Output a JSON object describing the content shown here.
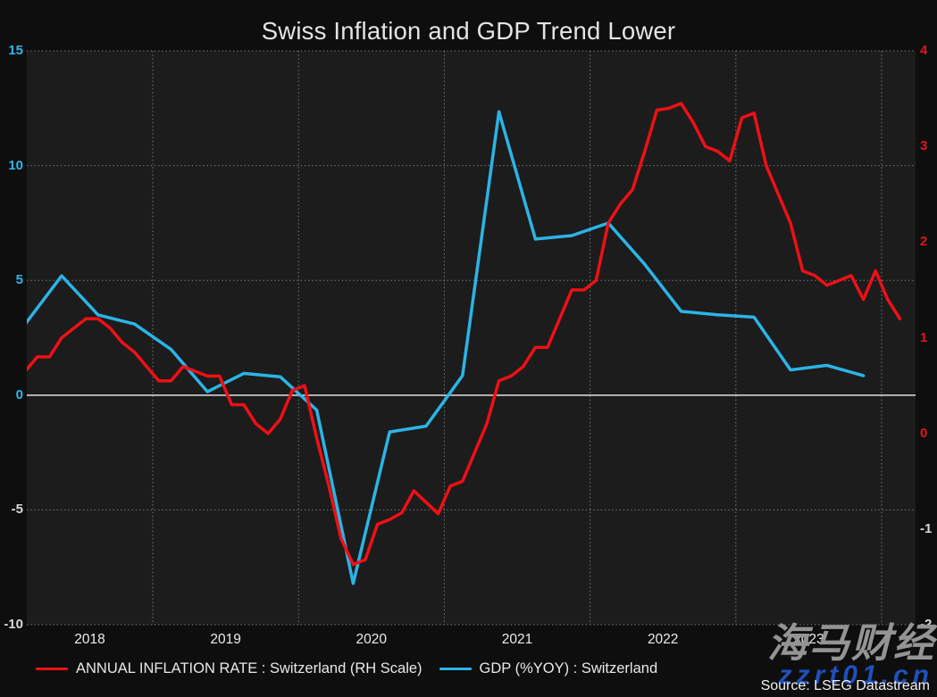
{
  "title": "Swiss Inflation and GDP Trend Lower",
  "source": "Source: LSEG Datastream",
  "watermark": {
    "line1": "海马财经",
    "line2": "zzrt01.cn"
  },
  "legend": [
    {
      "label": "ANNUAL INFLATION RATE : Switzerland (RH Scale)",
      "color": "#ee1016"
    },
    {
      "label": "GDP (%YOY) : Switzerland",
      "color": "#2cb4e6"
    }
  ],
  "colors": {
    "background": "#0e0e0e",
    "plot_background": "#1c1c1c",
    "grid_dotted": "#a8a8a8",
    "zero_line": "#d2d2d2",
    "left_tick_positive": "#2fb7e8",
    "right_tick_positive": "#e0151f",
    "tick_negative": "#d9d9d9",
    "x_tick": "#ececec",
    "title_text": "#e4e4e6"
  },
  "chart_data": {
    "type": "line",
    "title": "Swiss Inflation and GDP Trend Lower",
    "grid": "dotted",
    "zero_line": true,
    "legend_position": "bottom-left",
    "x_axis": {
      "tick_labels": [
        "2018",
        "2019",
        "2020",
        "2021",
        "2022",
        "2023"
      ],
      "gridline_years": [
        2019,
        2020,
        2021,
        2022,
        2023,
        2024
      ],
      "range_years": [
        2018.1,
        2024.25
      ]
    },
    "left_axis": {
      "label_for": "GDP (%YOY) : Switzerland",
      "ylim": [
        -10,
        15
      ],
      "ticks": [
        15,
        10,
        5,
        0,
        -5,
        -10
      ]
    },
    "right_axis": {
      "label_for": "ANNUAL INFLATION RATE : Switzerland (RH Scale)",
      "ylim": [
        -2,
        4
      ],
      "ticks": [
        4,
        3,
        2,
        1,
        0,
        -1,
        -2
      ]
    },
    "series": [
      {
        "name": "ANNUAL INFLATION RATE : Switzerland (RH Scale)",
        "axis": "right",
        "color": "#ee1016",
        "frequency": "monthly",
        "start_year": 2018,
        "start_period": 1,
        "values": [
          0.7,
          0.65,
          0.8,
          0.8,
          1.0,
          1.1,
          1.2,
          1.2,
          1.1,
          0.95,
          0.85,
          0.7,
          0.55,
          0.55,
          0.7,
          0.65,
          0.6,
          0.6,
          0.3,
          0.3,
          0.1,
          0.0,
          0.15,
          0.45,
          0.5,
          -0.05,
          -0.55,
          -1.1,
          -1.37,
          -1.32,
          -0.95,
          -0.9,
          -0.83,
          -0.6,
          -0.72,
          -0.84,
          -0.55,
          -0.5,
          -0.2,
          0.1,
          0.55,
          0.6,
          0.7,
          0.9,
          0.9,
          1.2,
          1.5,
          1.5,
          1.6,
          2.2,
          2.4,
          2.55,
          2.95,
          3.38,
          3.4,
          3.45,
          3.25,
          3.0,
          2.95,
          2.85,
          3.3,
          3.35,
          2.8,
          2.5,
          2.2,
          1.7,
          1.65,
          1.55,
          1.6,
          1.65,
          1.4,
          1.7,
          1.4,
          1.2
        ]
      },
      {
        "name": "GDP (%YOY) : Switzerland",
        "axis": "left",
        "color": "#2cb4e6",
        "frequency": "quarterly",
        "start_year": 2018,
        "start_period": 1,
        "values": [
          3.1,
          5.2,
          3.5,
          3.1,
          2.0,
          0.15,
          0.95,
          0.8,
          -0.65,
          -8.2,
          -1.6,
          -1.35,
          0.85,
          12.35,
          6.8,
          6.95,
          7.5,
          5.7,
          3.65,
          3.5,
          3.4,
          1.1,
          1.3,
          0.85
        ]
      }
    ]
  }
}
